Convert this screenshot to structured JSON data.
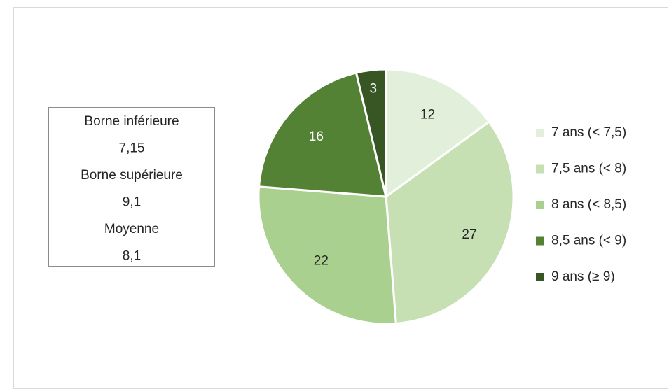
{
  "chart_data": {
    "type": "pie",
    "categories": [
      "7 ans (< 7,5)",
      "7,5 ans (< 8)",
      "8 ans (< 8,5)",
      "8,5 ans (< 9)",
      "9 ans (≥ 9)"
    ],
    "values": [
      12,
      27,
      22,
      16,
      3
    ],
    "colors": [
      "#e2efda",
      "#c6e0b4",
      "#a9d08e",
      "#548235",
      "#375623"
    ],
    "legend": "right",
    "annotation": [
      "Borne inférieure",
      "7,15",
      "Borne supérieure",
      "9,1",
      "Moyenne",
      "8,1"
    ]
  }
}
